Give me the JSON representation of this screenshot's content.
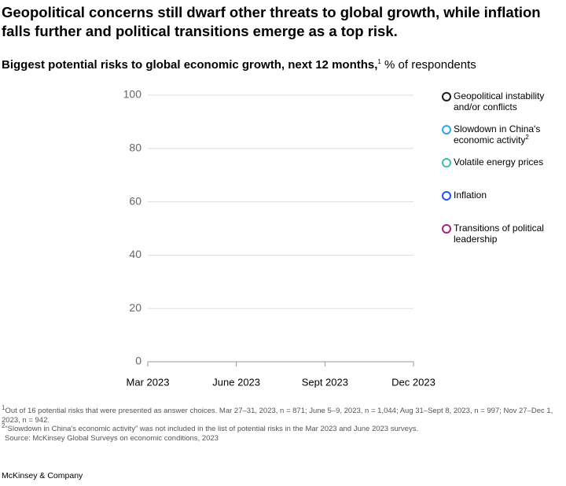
{
  "chart_data": {
    "type": "line",
    "title": "Geopolitical concerns still dwarf other threats to global growth, while inflation falls further and political transitions emerge as a top risk.",
    "subtitle": "Biggest potential risks to global economic growth, next 12 months,",
    "subtitle_mark": "1",
    "subtitle_unit": "% of respondents",
    "categories": [
      "Mar 2023",
      "June 2023",
      "Sept 2023",
      "Dec 2023"
    ],
    "series": [
      {
        "name": "Geopolitical instability and/or conflicts",
        "color": "#1a1a1a",
        "values": [
          null,
          null,
          null,
          null
        ]
      },
      {
        "name": "Slowdown in China's economic activity",
        "footnote_mark": "2",
        "color": "#2ca7e0",
        "values": [
          null,
          null,
          null,
          null
        ]
      },
      {
        "name": "Volatile energy prices",
        "color": "#3cbfae",
        "values": [
          null,
          null,
          null,
          null
        ]
      },
      {
        "name": "Inflation",
        "color": "#2251ff",
        "values": [
          null,
          null,
          null,
          null
        ]
      },
      {
        "name": "Transitions of political leadership",
        "color": "#a3237e",
        "values": [
          null,
          null,
          null,
          null
        ]
      }
    ],
    "ylim": [
      0,
      100
    ],
    "yticks": [
      0,
      20,
      40,
      60,
      80,
      100
    ],
    "grid": true,
    "footnotes": [
      {
        "mark": "1",
        "text": "Out of 16 potential risks that were presented as answer choices. Mar 27–31, 2023, n = 871; June 5–9, 2023, n = 1,044; Aug 31–Sept 8, 2023, n = 997; Nov 27–Dec 1, 2023, n = 942."
      },
      {
        "mark": "2",
        "text": "“Slowdown in China's economic activity” was not included in the list of potential risks in the Mar 2023 and June 2023 surveys."
      }
    ],
    "source": "Source: McKinsey Global Surveys on economic conditions, 2023",
    "brand": "McKinsey & Company"
  }
}
